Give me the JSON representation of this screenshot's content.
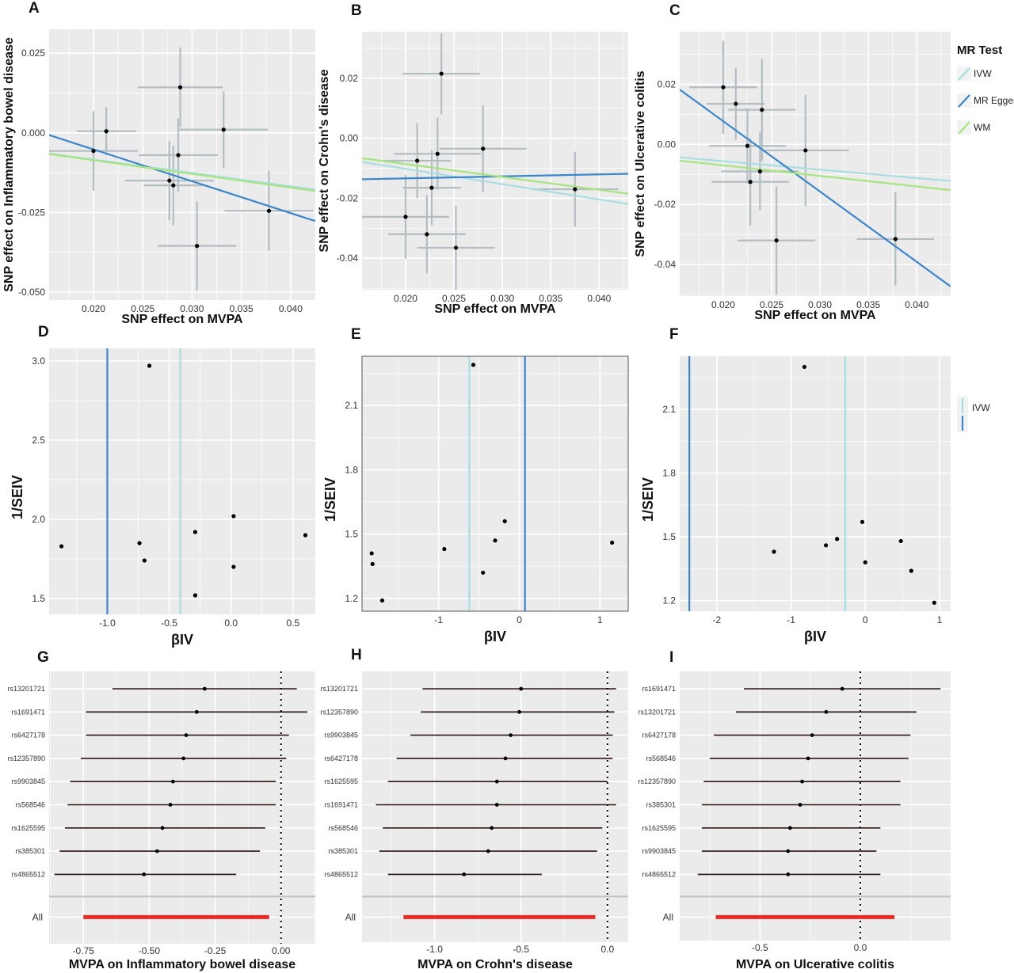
{
  "colors": {
    "ivw": "#a8dde2",
    "egger": "#3a86cc",
    "wm": "#a6e57e",
    "forest_pooled": "#e82a24",
    "panel_bg": "#ebebeb",
    "grid": "#ffffff"
  },
  "legend_c": {
    "title": "MR Test",
    "items": [
      "IVW",
      "MR Egger",
      "WM"
    ]
  },
  "legend_f": {
    "items": [
      "IVW"
    ]
  },
  "chart_data": [
    {
      "panel": "A",
      "type": "scatter",
      "xlabel": "SNP effect on MVPA",
      "ylabel": "SNP effect on Inflammatory bowel disease",
      "xlim": [
        0.0155,
        0.0425
      ],
      "ylim": [
        -0.0525,
        0.0325
      ],
      "xticks": [
        0.02,
        0.025,
        0.03,
        0.035,
        0.04
      ],
      "xticklabels": [
        "0.020",
        "0.025",
        "0.030",
        "0.035",
        "0.040"
      ],
      "yticks": [
        -0.05,
        -0.025,
        0.0,
        0.025
      ],
      "yticklabels": [
        "-0.050",
        "-0.025",
        "0.000",
        "0.025"
      ],
      "frame": false,
      "points": [
        {
          "x": 0.0288,
          "y": 0.0143,
          "xerr": 0.0043,
          "yerr": 0.0125
        },
        {
          "x": 0.0213,
          "y": 0.0005,
          "xerr": 0.003,
          "yerr": 0.0075
        },
        {
          "x": 0.0332,
          "y": 0.001,
          "xerr": 0.0045,
          "yerr": 0.012
        },
        {
          "x": 0.02,
          "y": -0.0057,
          "xerr": 0.0045,
          "yerr": 0.0125
        },
        {
          "x": 0.0286,
          "y": -0.007,
          "xerr": 0.004,
          "yerr": 0.0115
        },
        {
          "x": 0.0277,
          "y": -0.015,
          "xerr": 0.0045,
          "yerr": 0.0125
        },
        {
          "x": 0.0281,
          "y": -0.0165,
          "xerr": 0.003,
          "yerr": 0.0125
        },
        {
          "x": 0.0305,
          "y": -0.0355,
          "xerr": 0.004,
          "yerr": 0.014
        },
        {
          "x": 0.0378,
          "y": -0.0245,
          "xerr": 0.0045,
          "yerr": 0.0125
        }
      ],
      "lines": [
        {
          "series": "IVW",
          "intercept": 0,
          "slope": -0.42
        },
        {
          "series": "MR Egger",
          "intercept": 0.0148,
          "slope": -1.0
        },
        {
          "series": "WM",
          "intercept": 0.0,
          "slope": -0.43
        }
      ]
    },
    {
      "panel": "B",
      "type": "scatter",
      "xlabel": "SNP effect on MVPA",
      "ylabel": "SNP effect on Crohn's disease",
      "xlim": [
        0.0155,
        0.043
      ],
      "ylim": [
        -0.0505,
        0.0355
      ],
      "xticks": [
        0.02,
        0.025,
        0.03,
        0.035,
        0.04
      ],
      "xticklabels": [
        "0.020",
        "0.025",
        "0.030",
        "0.035",
        "0.040"
      ],
      "yticks": [
        -0.04,
        -0.02,
        0.0,
        0.02
      ],
      "yticklabels": [
        "-0.04",
        "-0.02",
        "0.00",
        "0.02"
      ],
      "frame": false,
      "points": [
        {
          "x": 0.0237,
          "y": 0.0215,
          "xerr": 0.004,
          "yerr": 0.0135
        },
        {
          "x": 0.0212,
          "y": -0.0075,
          "xerr": 0.0035,
          "yerr": 0.0125
        },
        {
          "x": 0.0233,
          "y": -0.0052,
          "xerr": 0.0045,
          "yerr": 0.012
        },
        {
          "x": 0.028,
          "y": -0.0035,
          "xerr": 0.0045,
          "yerr": 0.0145
        },
        {
          "x": 0.0227,
          "y": -0.0165,
          "xerr": 0.003,
          "yerr": 0.0125
        },
        {
          "x": 0.0375,
          "y": -0.017,
          "xerr": 0.0045,
          "yerr": 0.0125
        },
        {
          "x": 0.02,
          "y": -0.0262,
          "xerr": 0.0045,
          "yerr": 0.014
        },
        {
          "x": 0.0222,
          "y": -0.032,
          "xerr": 0.004,
          "yerr": 0.013
        },
        {
          "x": 0.0252,
          "y": -0.0365,
          "xerr": 0.004,
          "yerr": 0.014
        }
      ],
      "lines": [
        {
          "series": "IVW",
          "intercept": 0,
          "slope": -0.51
        },
        {
          "series": "MR Egger",
          "intercept": -0.0147,
          "slope": 0.066
        },
        {
          "series": "WM",
          "intercept": 0.0,
          "slope": -0.43
        }
      ]
    },
    {
      "panel": "C",
      "type": "scatter",
      "xlabel": "SNP effect on MVPA",
      "ylabel": "SNP effect on Ulcerative colitis",
      "xlim": [
        0.0155,
        0.0435
      ],
      "ylim": [
        -0.0505,
        0.0375
      ],
      "xticks": [
        0.02,
        0.025,
        0.03,
        0.035,
        0.04
      ],
      "xticklabels": [
        "0.020",
        "0.025",
        "0.030",
        "0.035",
        "0.040"
      ],
      "yticks": [
        -0.04,
        -0.02,
        0.0,
        0.02
      ],
      "yticklabels": [
        "-0.04",
        "-0.02",
        "0.00",
        "0.02"
      ],
      "frame": false,
      "points": [
        {
          "x": 0.02,
          "y": 0.019,
          "xerr": 0.0035,
          "yerr": 0.0155
        },
        {
          "x": 0.0213,
          "y": 0.0135,
          "xerr": 0.003,
          "yerr": 0.012
        },
        {
          "x": 0.024,
          "y": 0.0115,
          "xerr": 0.0035,
          "yerr": 0.017
        },
        {
          "x": 0.0225,
          "y": -0.0005,
          "xerr": 0.004,
          "yerr": 0.0125
        },
        {
          "x": 0.0285,
          "y": -0.002,
          "xerr": 0.0045,
          "yerr": 0.0185
        },
        {
          "x": 0.0238,
          "y": -0.009,
          "xerr": 0.004,
          "yerr": 0.013
        },
        {
          "x": 0.0228,
          "y": -0.0125,
          "xerr": 0.004,
          "yerr": 0.0145
        },
        {
          "x": 0.0255,
          "y": -0.032,
          "xerr": 0.004,
          "yerr": 0.018
        },
        {
          "x": 0.0378,
          "y": -0.0315,
          "xerr": 0.004,
          "yerr": 0.0155
        }
      ],
      "lines": [
        {
          "series": "IVW",
          "intercept": 0,
          "slope": -0.28
        },
        {
          "series": "MR Egger",
          "intercept": 0.0545,
          "slope": -2.34
        },
        {
          "series": "WM",
          "intercept": 0.0,
          "slope": -0.35
        }
      ]
    },
    {
      "panel": "D",
      "type": "scatter",
      "xlabel": "βIV",
      "ylabel": "1/SEIV",
      "xlim": [
        -1.47,
        0.68
      ],
      "ylim": [
        1.4,
        3.08
      ],
      "xticks": [
        -1.0,
        -0.5,
        0.0,
        0.5
      ],
      "xticklabels": [
        "-1.0",
        "-0.5",
        "0.0",
        "0.5"
      ],
      "yticks": [
        1.5,
        2.0,
        2.5,
        3.0
      ],
      "yticklabels": [
        "1.5",
        "2.0",
        "2.5",
        "3.0"
      ],
      "frame": false,
      "points": [
        {
          "x": -0.66,
          "y": 2.97
        },
        {
          "x": 0.02,
          "y": 2.02
        },
        {
          "x": -0.29,
          "y": 1.92
        },
        {
          "x": 0.6,
          "y": 1.9
        },
        {
          "x": -0.74,
          "y": 1.85
        },
        {
          "x": -1.37,
          "y": 1.83
        },
        {
          "x": -0.7,
          "y": 1.74
        },
        {
          "x": 0.02,
          "y": 1.7
        },
        {
          "x": -0.29,
          "y": 1.52
        }
      ],
      "vlines": [
        {
          "series": "IVW",
          "x": -0.41
        },
        {
          "series": "MR Egger",
          "x": -1.0
        }
      ]
    },
    {
      "panel": "E",
      "type": "scatter",
      "xlabel": "βIV",
      "ylabel": "1/SEIV",
      "xlim": [
        -1.95,
        1.35
      ],
      "ylim": [
        1.14,
        2.33
      ],
      "xticks": [
        -1,
        0,
        1
      ],
      "xticklabels": [
        "-1",
        "0",
        "1"
      ],
      "yticks": [
        1.2,
        1.5,
        1.8,
        2.1
      ],
      "yticklabels": [
        "1.2",
        "1.5",
        "1.8",
        "2.1"
      ],
      "frame": true,
      "points": [
        {
          "x": -0.57,
          "y": 2.29
        },
        {
          "x": -0.18,
          "y": 1.56
        },
        {
          "x": -0.3,
          "y": 1.47
        },
        {
          "x": 1.15,
          "y": 1.46
        },
        {
          "x": -0.93,
          "y": 1.43
        },
        {
          "x": -1.83,
          "y": 1.41
        },
        {
          "x": -1.82,
          "y": 1.36
        },
        {
          "x": -0.45,
          "y": 1.32
        },
        {
          "x": -1.7,
          "y": 1.19
        }
      ],
      "vlines": [
        {
          "series": "IVW",
          "x": -0.62
        },
        {
          "series": "MR Egger",
          "x": 0.07
        }
      ]
    },
    {
      "panel": "F",
      "type": "scatter",
      "xlabel": "βIV",
      "ylabel": "1/SEIV",
      "xlim": [
        -2.5,
        1.15
      ],
      "ylim": [
        1.15,
        2.35
      ],
      "xticks": [
        -2,
        -1,
        0,
        1
      ],
      "xticklabels": [
        "-2",
        "-1",
        "0",
        "1"
      ],
      "yticks": [
        1.2,
        1.5,
        1.8,
        2.1
      ],
      "yticklabels": [
        "1.2",
        "1.5",
        "1.8",
        "2.1"
      ],
      "frame": false,
      "points": [
        {
          "x": -0.82,
          "y": 2.3
        },
        {
          "x": -0.04,
          "y": 1.57
        },
        {
          "x": -0.38,
          "y": 1.49
        },
        {
          "x": 0.48,
          "y": 1.48
        },
        {
          "x": -0.53,
          "y": 1.46
        },
        {
          "x": -1.23,
          "y": 1.43
        },
        {
          "x": 0.0,
          "y": 1.38
        },
        {
          "x": 0.62,
          "y": 1.34
        },
        {
          "x": 0.93,
          "y": 1.19
        }
      ],
      "vlines": [
        {
          "series": "IVW",
          "x": -0.27
        },
        {
          "series": "MR Egger",
          "x": -2.37
        }
      ]
    },
    {
      "panel": "G",
      "type": "forest",
      "xlabel": "MVPA on Inflammatory bowel disease",
      "xlim": [
        -0.88,
        0.13
      ],
      "xticks": [
        -0.75,
        -0.5,
        -0.25,
        0.0
      ],
      "xticklabels": [
        "-0.75",
        "-0.50",
        "-0.25",
        "0.00"
      ],
      "snps": [
        {
          "label": "rs13201721",
          "est": -0.29,
          "lo": -0.64,
          "hi": 0.06
        },
        {
          "label": "rs1691471",
          "est": -0.32,
          "lo": -0.74,
          "hi": 0.1
        },
        {
          "label": "rs6427178",
          "est": -0.36,
          "lo": -0.74,
          "hi": 0.03
        },
        {
          "label": "rs12357890",
          "est": -0.37,
          "lo": -0.76,
          "hi": 0.02
        },
        {
          "label": "rs9903845",
          "est": -0.41,
          "lo": -0.8,
          "hi": -0.02
        },
        {
          "label": "rs568546",
          "est": -0.42,
          "lo": -0.81,
          "hi": -0.02
        },
        {
          "label": "rs1625595",
          "est": -0.45,
          "lo": -0.82,
          "hi": -0.06
        },
        {
          "label": "rs385301",
          "est": -0.47,
          "lo": -0.84,
          "hi": -0.08
        },
        {
          "label": "rs4865512",
          "est": -0.52,
          "lo": -0.86,
          "hi": -0.17
        }
      ],
      "pooled": {
        "label": "All",
        "lo": -0.75,
        "hi": -0.045
      }
    },
    {
      "panel": "H",
      "type": "forest",
      "xlabel": "MVPA on Crohn's disease",
      "xlim": [
        -1.42,
        0.12
      ],
      "xticks": [
        -1.0,
        -0.5,
        0.0
      ],
      "xticklabels": [
        "-1.0",
        "-0.5",
        "0.0"
      ],
      "snps": [
        {
          "label": "rs13201721",
          "est": -0.5,
          "lo": -1.07,
          "hi": 0.05
        },
        {
          "label": "rs12357890",
          "est": -0.51,
          "lo": -1.08,
          "hi": 0.04
        },
        {
          "label": "rs9903845",
          "est": -0.56,
          "lo": -1.14,
          "hi": 0.03
        },
        {
          "label": "rs6427178",
          "est": -0.59,
          "lo": -1.22,
          "hi": 0.03
        },
        {
          "label": "rs1625595",
          "est": -0.64,
          "lo": -1.27,
          "hi": 0.0
        },
        {
          "label": "rs1691471",
          "est": -0.64,
          "lo": -1.34,
          "hi": 0.05
        },
        {
          "label": "rs568546",
          "est": -0.67,
          "lo": -1.3,
          "hi": -0.03
        },
        {
          "label": "rs385301",
          "est": -0.69,
          "lo": -1.32,
          "hi": -0.06
        },
        {
          "label": "rs4865512",
          "est": -0.83,
          "lo": -1.27,
          "hi": -0.38
        }
      ],
      "pooled": {
        "label": "All",
        "lo": -1.18,
        "hi": -0.07
      }
    },
    {
      "panel": "I",
      "type": "forest",
      "xlabel": "MVPA on Ulcerative colitis",
      "xlim": [
        -0.9,
        0.45
      ],
      "xticks": [
        -0.5,
        0.0
      ],
      "xticklabels": [
        "-0.5",
        "0.0"
      ],
      "snps": [
        {
          "label": "rs1691471",
          "est": -0.09,
          "lo": -0.58,
          "hi": 0.4
        },
        {
          "label": "rs13201721",
          "est": -0.17,
          "lo": -0.62,
          "hi": 0.28
        },
        {
          "label": "rs6427178",
          "est": -0.24,
          "lo": -0.73,
          "hi": 0.25
        },
        {
          "label": "rs568546",
          "est": -0.26,
          "lo": -0.75,
          "hi": 0.24
        },
        {
          "label": "rs12357890",
          "est": -0.29,
          "lo": -0.78,
          "hi": 0.2
        },
        {
          "label": "rs385301",
          "est": -0.3,
          "lo": -0.79,
          "hi": 0.2
        },
        {
          "label": "rs1625595",
          "est": -0.35,
          "lo": -0.79,
          "hi": 0.1
        },
        {
          "label": "rs9903845",
          "est": -0.36,
          "lo": -0.79,
          "hi": 0.08
        },
        {
          "label": "rs4865512",
          "est": -0.36,
          "lo": -0.81,
          "hi": 0.1
        }
      ],
      "pooled": {
        "label": "All",
        "lo": -0.72,
        "hi": 0.17
      }
    }
  ]
}
